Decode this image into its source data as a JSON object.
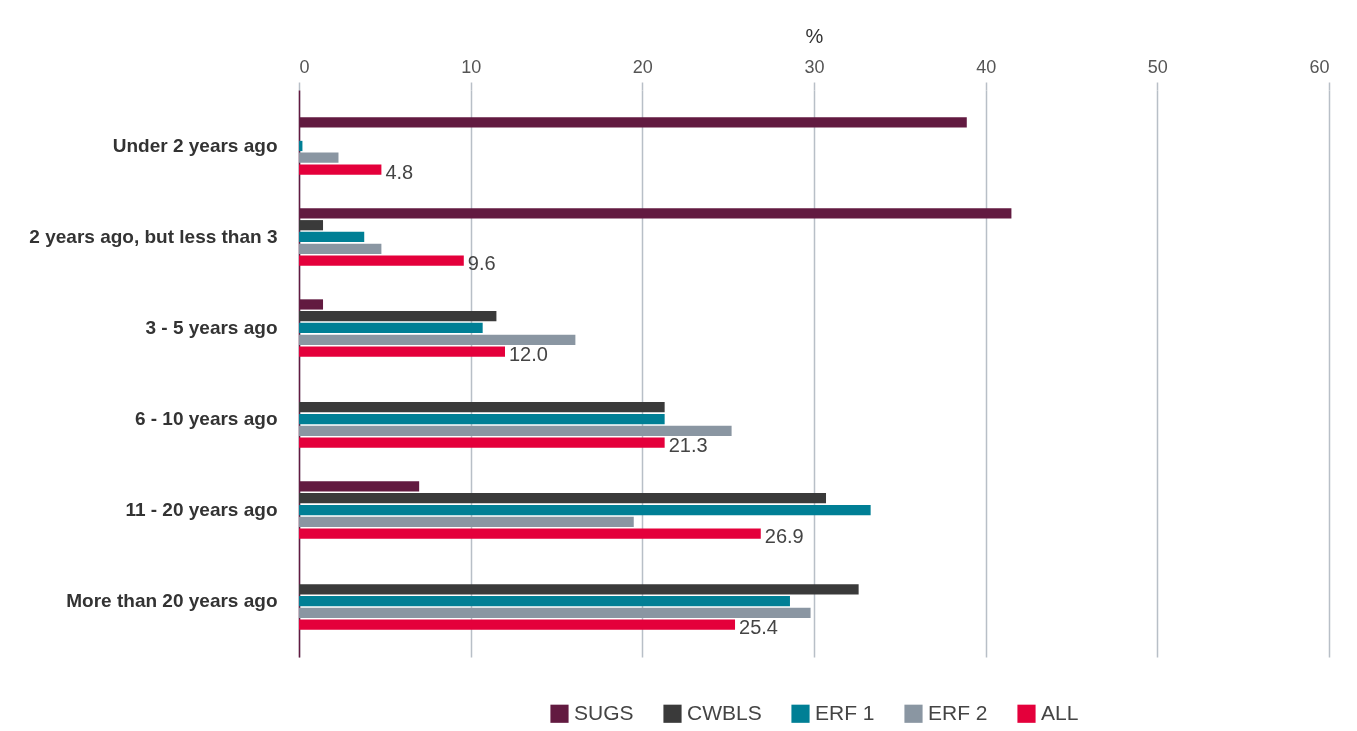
{
  "chart_data": {
    "type": "bar",
    "orientation": "horizontal",
    "xlabel": "%",
    "categories": [
      "Under 2 years ago",
      "2 years ago, but less than 3",
      "3 - 5 years ago",
      "6 - 10 years ago",
      "11 - 20 years ago",
      "More than 20 years ago"
    ],
    "series": [
      {
        "name": "SUGS",
        "color": "#621a40",
        "values": [
          38.9,
          41.5,
          1.4,
          null,
          7.0,
          null
        ]
      },
      {
        "name": "CWBLS",
        "color": "#3a3a3a",
        "values": [
          null,
          1.4,
          11.5,
          21.3,
          30.7,
          32.6
        ]
      },
      {
        "name": "ERF 1",
        "color": "#007f95",
        "values": [
          0.2,
          3.8,
          10.7,
          21.3,
          33.3,
          28.6
        ]
      },
      {
        "name": "ERF 2",
        "color": "#8a96a2",
        "values": [
          2.3,
          4.8,
          16.1,
          25.2,
          19.5,
          29.8
        ]
      },
      {
        "name": "ALL",
        "color": "#e4003b",
        "values": [
          4.8,
          9.6,
          12.0,
          21.3,
          26.9,
          25.4
        ],
        "value_labels": [
          "4.8",
          "9.6",
          "12.0",
          "21.3",
          "26.9",
          "25.4"
        ]
      }
    ],
    "xlim": [
      0,
      60
    ],
    "xticks": [
      0,
      10,
      20,
      30,
      40,
      50,
      60
    ],
    "grid": "x",
    "legend": "bottom"
  }
}
